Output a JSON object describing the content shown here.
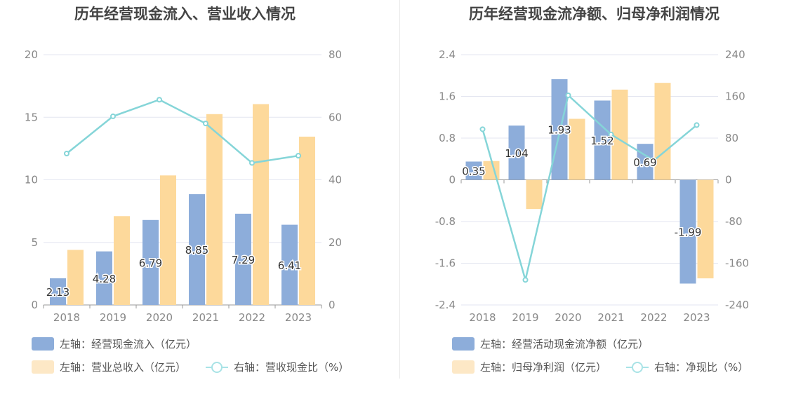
{
  "colors": {
    "blue": "#8dadda",
    "orange": "#fdd99b",
    "line": "#85d5d8",
    "grid": "#e3e6f0",
    "axis": "#999999",
    "label": "#888888"
  },
  "legend_swatch_colors": {
    "blue": "#8dadda",
    "orange": "#fde8c6",
    "line": "#a9e3e6"
  },
  "chart_data": [
    {
      "type": "bar",
      "title": "历年经营现金流入、营业收入情况",
      "categories": [
        "2018",
        "2019",
        "2020",
        "2021",
        "2022",
        "2023"
      ],
      "left_axis": {
        "ylim": [
          0,
          20
        ],
        "ticks": [
          "0",
          "5",
          "10",
          "15",
          "20"
        ]
      },
      "right_axis": {
        "ylim": [
          0,
          80
        ],
        "ticks": [
          "0",
          "20",
          "40",
          "60",
          "80"
        ]
      },
      "grid": true,
      "series": [
        {
          "name": "左轴：经营现金流入（亿元）",
          "type": "bar",
          "axis": "left",
          "color": "#8dadda",
          "values": [
            2.13,
            4.28,
            6.79,
            8.85,
            7.29,
            6.41
          ],
          "labels": [
            "2.13",
            "4.28",
            "6.79",
            "8.85",
            "7.29",
            "6.41"
          ]
        },
        {
          "name": "左轴：营业总收入（亿元）",
          "type": "bar",
          "axis": "left",
          "color": "#fdd99b",
          "values": [
            4.4,
            7.1,
            10.35,
            15.25,
            16.05,
            13.45
          ]
        },
        {
          "name": "右轴：营收现金比（%）",
          "type": "line",
          "axis": "right",
          "color": "#85d5d8",
          "values": [
            48.4,
            60.3,
            65.6,
            58.0,
            45.4,
            47.7
          ]
        }
      ]
    },
    {
      "type": "bar",
      "title": "历年经营现金流净额、归母净利润情况",
      "categories": [
        "2018",
        "2019",
        "2020",
        "2021",
        "2022",
        "2023"
      ],
      "left_axis": {
        "ylim": [
          -2.4,
          2.4
        ],
        "ticks": [
          "-2.4",
          "-1.6",
          "-0.8",
          "0",
          "0.8",
          "1.6",
          "2.4"
        ]
      },
      "right_axis": {
        "ylim": [
          -240,
          240
        ],
        "ticks": [
          "-240",
          "-160",
          "-80",
          "0",
          "80",
          "160",
          "240"
        ]
      },
      "grid": true,
      "series": [
        {
          "name": "左轴：经营活动现金流净额（亿元）",
          "type": "bar",
          "axis": "left",
          "color": "#8dadda",
          "values": [
            0.35,
            1.04,
            1.93,
            1.52,
            0.69,
            -1.99
          ],
          "labels": [
            "0.35",
            "1.04",
            "1.93",
            "1.52",
            "0.69",
            "-1.99"
          ]
        },
        {
          "name": "左轴：归母净利润（亿元）",
          "type": "bar",
          "axis": "left",
          "color": "#fdd99b",
          "values": [
            0.36,
            -0.56,
            1.17,
            1.73,
            1.86,
            -1.89
          ]
        },
        {
          "name": "右轴：净现比（%）",
          "type": "line",
          "axis": "right",
          "color": "#85d5d8",
          "values": [
            97,
            -192,
            162,
            87,
            37,
            105
          ]
        }
      ]
    }
  ]
}
